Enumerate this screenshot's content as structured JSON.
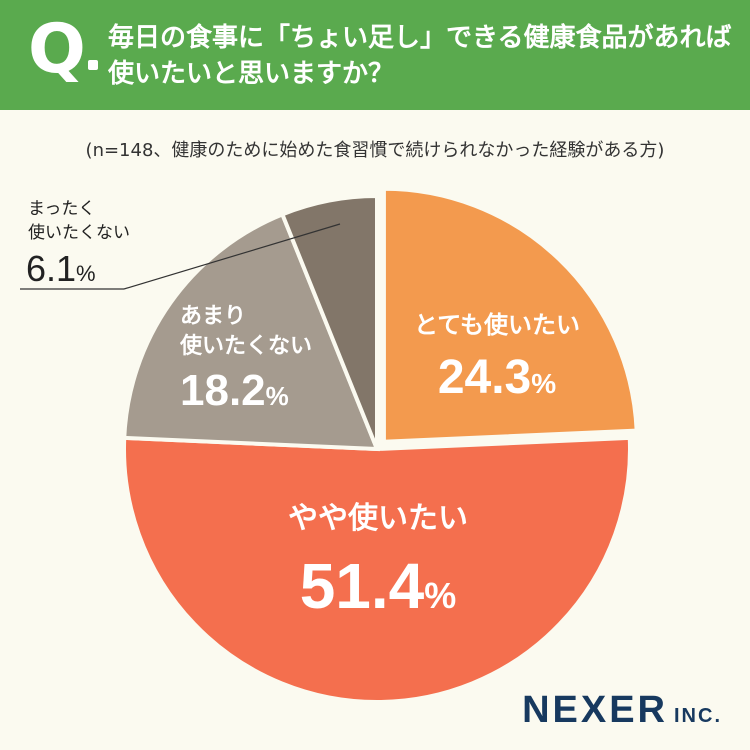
{
  "header": {
    "q_letter": "Q",
    "question": "毎日の食事に「ちょい足し」できる健康食品があれば使いたいと思いますか？"
  },
  "note": "(n=148、健康のために始めた食習慣で続けられなかった経験がある方)",
  "chart_data": {
    "type": "pie",
    "title": "毎日の食事に「ちょい足し」できる健康食品があれば使いたいと思いますか？",
    "slices": [
      {
        "label": "とても使いたい",
        "value": 24.3,
        "color": "#f39a4e"
      },
      {
        "label": "やや使いたい",
        "value": 51.4,
        "color": "#f46f4e"
      },
      {
        "label": "あまり使いたくない",
        "value": 18.2,
        "color": "#a59b8f"
      },
      {
        "label": "まったく使いたくない",
        "value": 6.1,
        "color": "#827669"
      }
    ],
    "unit": "%"
  },
  "labels": {
    "s0_line1": "とても使いたい",
    "s0_value": "24.3",
    "s1_line1": "やや使いたい",
    "s1_value": "51.4",
    "s2_line1": "あまり",
    "s2_line2": "使いたくない",
    "s2_value": "18.2",
    "s3_line1": "まったく",
    "s3_line2": "使いたくない",
    "s3_value": "6.1",
    "percent_sign": "%"
  },
  "logo": {
    "name": "NEXER",
    "suffix": "INC."
  }
}
